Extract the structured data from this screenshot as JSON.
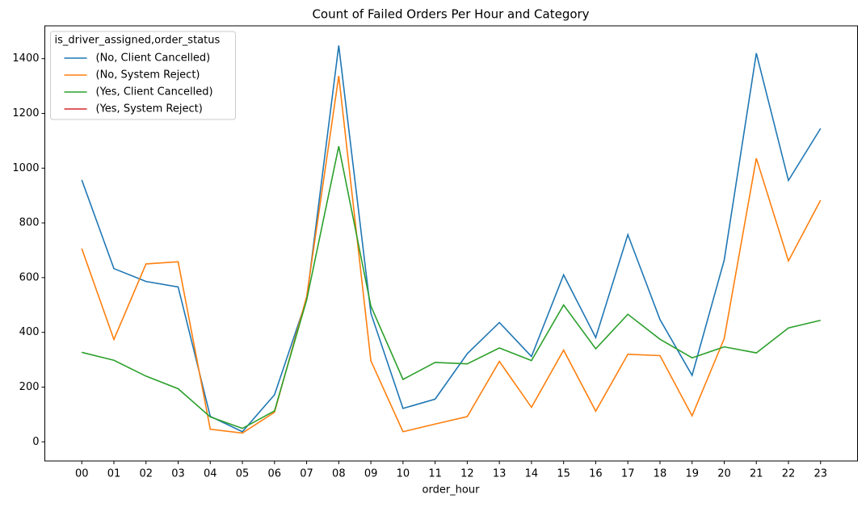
{
  "chart_data": {
    "type": "line",
    "title": "Count of Failed Orders Per Hour and Category",
    "xlabel": "order_hour",
    "categories": [
      "00",
      "01",
      "02",
      "03",
      "04",
      "05",
      "06",
      "07",
      "08",
      "09",
      "10",
      "11",
      "12",
      "13",
      "14",
      "15",
      "16",
      "17",
      "18",
      "19",
      "20",
      "21",
      "22",
      "23"
    ],
    "legend_title": "is_driver_assigned,order_status",
    "legend": "upper left",
    "series": [
      {
        "name": "(No, Client Cancelled)",
        "color": "#1f77b4",
        "values": [
          957,
          633,
          586,
          566,
          93,
          37,
          172,
          520,
          1448,
          470,
          122,
          156,
          322,
          436,
          312,
          610,
          381,
          757,
          447,
          243,
          664,
          1420,
          955,
          1145
        ]
      },
      {
        "name": "(No, System Reject)",
        "color": "#ff7f0e",
        "values": [
          706,
          374,
          650,
          658,
          46,
          32,
          108,
          530,
          1337,
          296,
          37,
          65,
          92,
          294,
          126,
          335,
          112,
          320,
          315,
          95,
          377,
          1036,
          661,
          883
        ]
      },
      {
        "name": "(Yes, Client Cancelled)",
        "color": "#2ca02c",
        "values": [
          327,
          298,
          240,
          194,
          91,
          49,
          113,
          518,
          1080,
          496,
          228,
          290,
          285,
          343,
          297,
          500,
          340,
          466,
          375,
          307,
          347,
          325,
          416,
          444
        ]
      },
      {
        "name": "(Yes, System Reject)",
        "color": "#d62728",
        "values": [
          null,
          null,
          null,
          null,
          null,
          null,
          null,
          null,
          null,
          null,
          null,
          null,
          null,
          null,
          null,
          null,
          null,
          null,
          null,
          null,
          null,
          null,
          null,
          null
        ]
      }
    ],
    "ylim": [
      -70,
      1520
    ],
    "yticks": [
      0,
      200,
      400,
      600,
      800,
      1000,
      1200,
      1400
    ]
  }
}
